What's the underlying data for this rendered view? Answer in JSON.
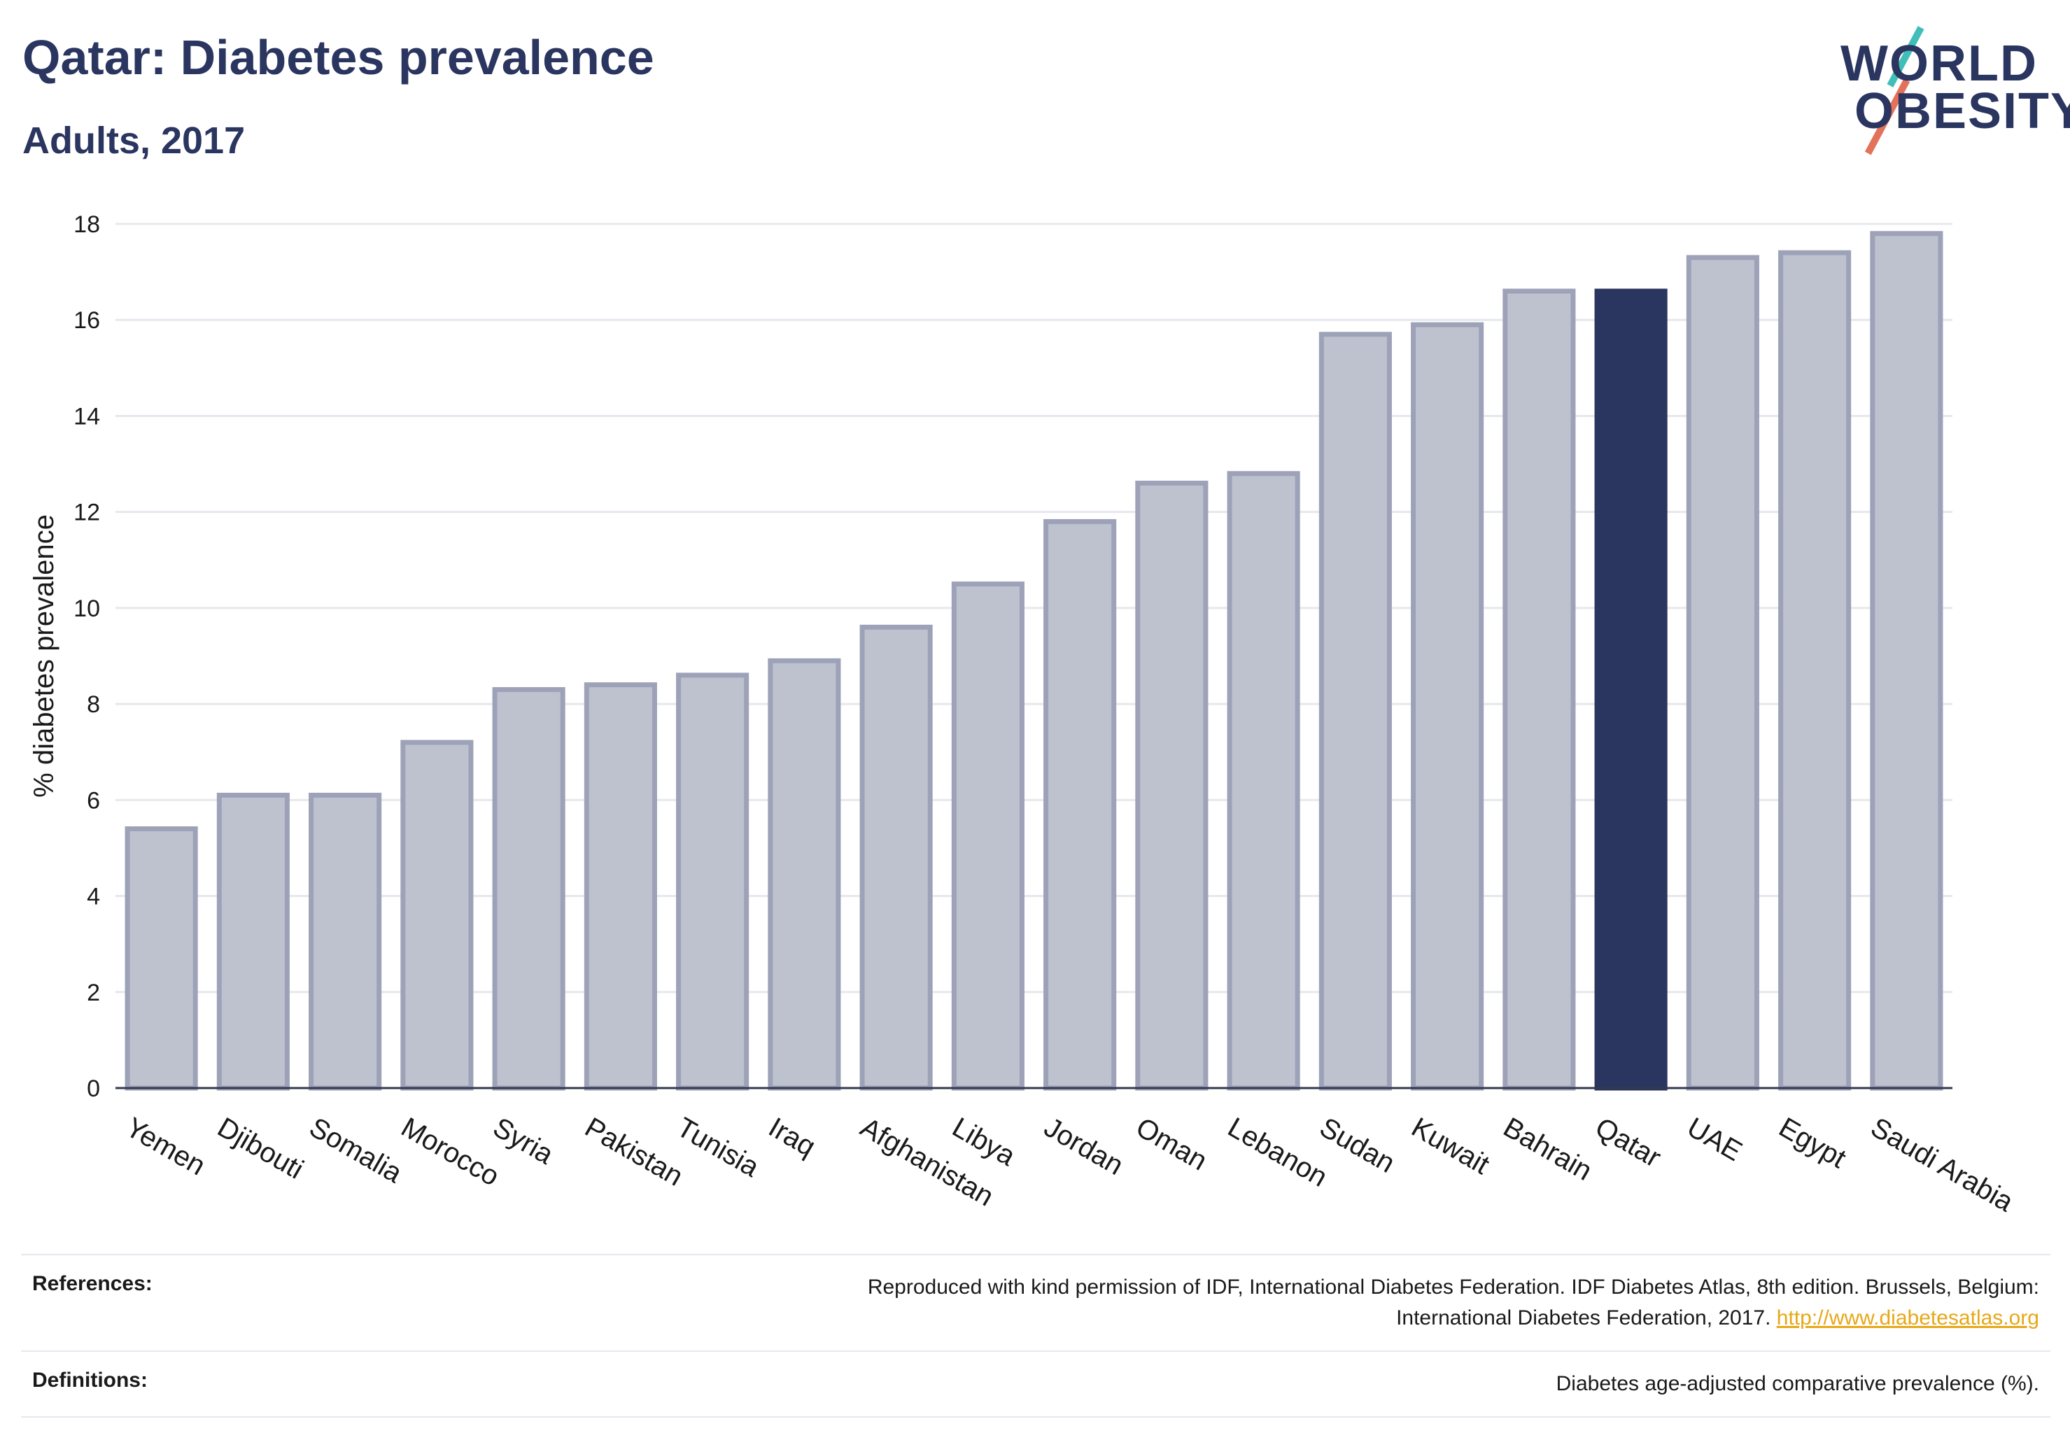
{
  "header": {
    "title": "Qatar: Diabetes prevalence",
    "subtitle": "Adults, 2017"
  },
  "logo": {
    "line1": "WORLD",
    "line2": "OBESITY",
    "colors": {
      "text": "#2a3560",
      "accent_top": "#3fbfb8",
      "accent_bottom": "#e4725b"
    }
  },
  "chart_data": {
    "type": "bar",
    "title": "Qatar: Diabetes prevalence",
    "subtitle": "Adults, 2017",
    "xlabel": "",
    "ylabel": "% diabetes prevalence",
    "ylim": [
      0,
      18
    ],
    "yticks": [
      0,
      2,
      4,
      6,
      8,
      10,
      12,
      14,
      16,
      18
    ],
    "grid": true,
    "categories": [
      "Yemen",
      "Djibouti",
      "Somalia",
      "Morocco",
      "Syria",
      "Pakistan",
      "Tunisia",
      "Iraq",
      "Afghanistan",
      "Libya",
      "Jordan",
      "Oman",
      "Lebanon",
      "Sudan",
      "Kuwait",
      "Bahrain",
      "Qatar",
      "UAE",
      "Egypt",
      "Saudi Arabia"
    ],
    "values": [
      5.4,
      6.1,
      6.1,
      7.2,
      8.3,
      8.4,
      8.6,
      8.9,
      9.6,
      10.5,
      11.8,
      12.6,
      12.8,
      15.7,
      15.9,
      16.6,
      16.6,
      17.3,
      17.4,
      17.8
    ],
    "highlight": "Qatar",
    "colors": {
      "bar": "#bec1ce",
      "bar_border": "#9da2b8",
      "highlight": "#2a3560"
    }
  },
  "footer": {
    "references_label": "References:",
    "references_line1": "Reproduced with kind permission of IDF, International Diabetes Federation. IDF Diabetes Atlas, 8th edition. Brussels, Belgium:",
    "references_line2": "International Diabetes Federation, 2017. ",
    "references_link": "http://www.diabetesatlas.org",
    "definitions_label": "Definitions:",
    "definitions_text": "Diabetes age-adjusted comparative prevalence (%)."
  }
}
